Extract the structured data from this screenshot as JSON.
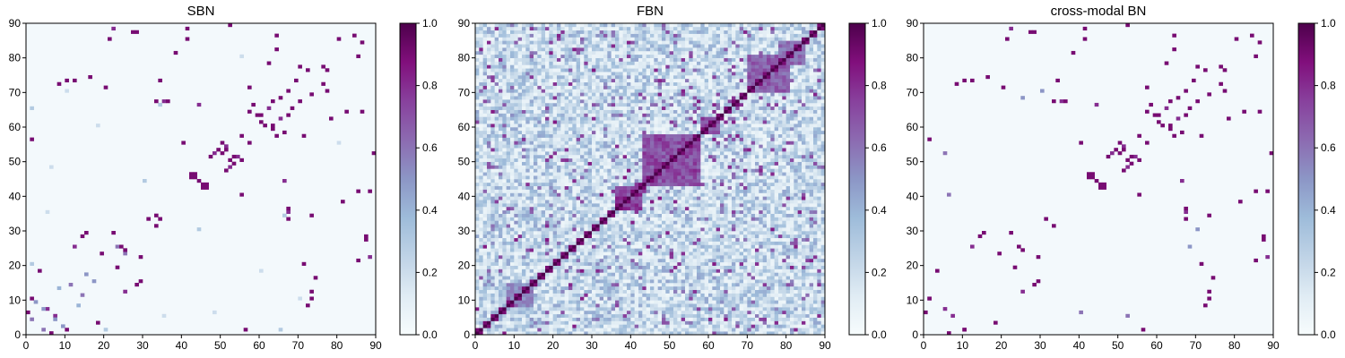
{
  "figure": {
    "colormap": "BuPu",
    "colormap_stops": [
      "#f7fcfd",
      "#e0ecf4",
      "#bfd3e6",
      "#9ebcda",
      "#8c96c6",
      "#8c6bb1",
      "#88419d",
      "#810f7c",
      "#4d004b"
    ]
  },
  "chart_data": [
    {
      "type": "heatmap",
      "title": "SBN",
      "xlim": [
        0,
        90
      ],
      "ylim": [
        0,
        90
      ],
      "xticks": [
        0,
        10,
        20,
        30,
        40,
        50,
        60,
        70,
        80,
        90
      ],
      "yticks": [
        0,
        10,
        20,
        30,
        40,
        50,
        60,
        70,
        80,
        90
      ],
      "grid_size": 90,
      "colorbar": {
        "range": [
          0,
          1
        ],
        "ticks": [
          0.0,
          0.2,
          0.4,
          0.6,
          0.8,
          1.0
        ],
        "tick_labels": [
          "0.0",
          "0.2",
          "0.4",
          "0.6",
          "0.8",
          "1.0"
        ]
      },
      "matrix_description": "Sparse structural brain network: mostly near-zero background with scattered high-weight symmetric cells, densest around nodes 40-55 and 60-75",
      "symmetric": true,
      "cells": [
        [
          0,
          6,
          0.9
        ],
        [
          1,
          20,
          0.3
        ],
        [
          3,
          18,
          0.9
        ],
        [
          4,
          1,
          0.6
        ],
        [
          5,
          7,
          0.8
        ],
        [
          7,
          4,
          0.5
        ],
        [
          8,
          13,
          0.4
        ],
        [
          9,
          2,
          0.5
        ],
        [
          10,
          1,
          0.9
        ],
        [
          11,
          14,
          0.6
        ],
        [
          12,
          25,
          0.8
        ],
        [
          14,
          28,
          0.9
        ],
        [
          15,
          29,
          0.9
        ],
        [
          17,
          15,
          0.5
        ],
        [
          19,
          23,
          0.9
        ],
        [
          21,
          85,
          0.9
        ],
        [
          22,
          88,
          0.8
        ],
        [
          23,
          25,
          0.6
        ],
        [
          25,
          24,
          0.9
        ],
        [
          27,
          87,
          0.9
        ],
        [
          29,
          22,
          0.9
        ],
        [
          31,
          33,
          0.9
        ],
        [
          33,
          34,
          0.9
        ],
        [
          35,
          67,
          0.8
        ],
        [
          36,
          67,
          0.9
        ],
        [
          38,
          81,
          0.9
        ],
        [
          40,
          55,
          0.9
        ],
        [
          42,
          45,
          0.9
        ],
        [
          43,
          46,
          0.9
        ],
        [
          44,
          44,
          0.9
        ],
        [
          45,
          43,
          0.9
        ],
        [
          46,
          42,
          0.9
        ],
        [
          47,
          51,
          0.9
        ],
        [
          48,
          52,
          0.8
        ],
        [
          49,
          53,
          0.9
        ],
        [
          50,
          55,
          0.9
        ],
        [
          51,
          54,
          0.8
        ],
        [
          52,
          50,
          0.9
        ],
        [
          53,
          51,
          0.9
        ],
        [
          55,
          57,
          0.9
        ],
        [
          56,
          1,
          0.9
        ],
        [
          57,
          64,
          0.9
        ],
        [
          58,
          66,
          0.9
        ],
        [
          59,
          63,
          0.9
        ],
        [
          60,
          61,
          0.9
        ],
        [
          62,
          65,
          0.8
        ],
        [
          63,
          67,
          0.9
        ],
        [
          65,
          68,
          0.9
        ],
        [
          67,
          70,
          0.9
        ],
        [
          69,
          73,
          0.9
        ],
        [
          71,
          57,
          0.9
        ],
        [
          72,
          76,
          0.9
        ],
        [
          73,
          34,
          0.9
        ],
        [
          74,
          16,
          0.9
        ],
        [
          76,
          77,
          0.9
        ],
        [
          78,
          62,
          0.9
        ],
        [
          80,
          85,
          0.9
        ],
        [
          82,
          64,
          0.9
        ],
        [
          84,
          86,
          0.9
        ],
        [
          86,
          64,
          0.9
        ],
        [
          87,
          28,
          0.9
        ],
        [
          88,
          41,
          0.9
        ],
        [
          89,
          52,
          0.9
        ],
        [
          5,
          35,
          0.2
        ],
        [
          18,
          60,
          0.2
        ],
        [
          30,
          44,
          0.3
        ],
        [
          48,
          6,
          0.2
        ],
        [
          55,
          80,
          0.2
        ],
        [
          66,
          34,
          0.3
        ],
        [
          70,
          10,
          0.2
        ],
        [
          10,
          73,
          0.9
        ],
        [
          12,
          73,
          0.9
        ],
        [
          20,
          71,
          0.9
        ],
        [
          8,
          72,
          0.9
        ],
        [
          33,
          67,
          0.9
        ],
        [
          44,
          66,
          0.8
        ],
        [
          63,
          60,
          0.9
        ],
        [
          70,
          77,
          0.9
        ],
        [
          85,
          41,
          0.9
        ],
        [
          1,
          65,
          0.3
        ]
      ]
    },
    {
      "type": "heatmap",
      "title": "FBN",
      "xlim": [
        0,
        90
      ],
      "ylim": [
        0,
        90
      ],
      "xticks": [
        0,
        10,
        20,
        30,
        40,
        50,
        60,
        70,
        80,
        90
      ],
      "yticks": [
        0,
        10,
        20,
        30,
        40,
        50,
        60,
        70,
        80,
        90
      ],
      "grid_size": 90,
      "colorbar": {
        "range": [
          0,
          1
        ],
        "ticks": [
          0.0,
          0.2,
          0.4,
          0.6,
          0.8,
          1.0
        ],
        "tick_labels": [
          "0.0",
          "0.2",
          "0.4",
          "0.6",
          "0.8",
          "1.0"
        ]
      },
      "matrix_description": "Dense functional brain network: moderate background weights (about 0.1-0.4), diagonal of value 1, strong blocks around nodes 36-42, 43-57, 58-62 and 70-80",
      "symmetric": true,
      "diagonal_value": 1.0,
      "background_range": [
        0.05,
        0.45
      ],
      "blocks": [
        {
          "from": 36,
          "to": 42,
          "value": 0.85
        },
        {
          "from": 43,
          "to": 57,
          "value": 0.8
        },
        {
          "from": 58,
          "to": 62,
          "value": 0.8
        },
        {
          "from": 70,
          "to": 80,
          "value": 0.75
        },
        {
          "from": 8,
          "to": 14,
          "value": 0.6
        },
        {
          "from": 78,
          "to": 84,
          "value": 0.7
        }
      ]
    },
    {
      "type": "heatmap",
      "title": "cross-modal BN",
      "xlim": [
        0,
        90
      ],
      "ylim": [
        0,
        90
      ],
      "xticks": [
        0,
        10,
        20,
        30,
        40,
        50,
        60,
        70,
        80,
        90
      ],
      "yticks": [
        0,
        10,
        20,
        30,
        40,
        50,
        60,
        70,
        80,
        90
      ],
      "grid_size": 90,
      "colorbar": {
        "range": [
          0,
          1
        ],
        "ticks": [
          0.0,
          0.2,
          0.4,
          0.6,
          0.8,
          1.0
        ],
        "tick_labels": [
          "0.0",
          "0.2",
          "0.4",
          "0.6",
          "0.8",
          "1.0"
        ]
      },
      "matrix_description": "Sparse cross-modal network: near-zero background with scattered binary-like strong cells resembling the SBN pattern",
      "symmetric": true,
      "cells": [
        [
          0,
          6,
          0.9
        ],
        [
          1,
          10,
          0.9
        ],
        [
          3,
          18,
          0.9
        ],
        [
          5,
          7,
          0.8
        ],
        [
          10,
          1,
          0.9
        ],
        [
          12,
          25,
          0.8
        ],
        [
          14,
          28,
          0.9
        ],
        [
          15,
          29,
          0.9
        ],
        [
          19,
          23,
          0.9
        ],
        [
          21,
          85,
          0.9
        ],
        [
          22,
          88,
          0.8
        ],
        [
          25,
          24,
          0.9
        ],
        [
          27,
          87,
          0.9
        ],
        [
          29,
          22,
          0.9
        ],
        [
          31,
          33,
          0.9
        ],
        [
          35,
          67,
          0.8
        ],
        [
          36,
          67,
          0.9
        ],
        [
          38,
          81,
          0.9
        ],
        [
          40,
          55,
          0.9
        ],
        [
          42,
          45,
          0.9
        ],
        [
          43,
          46,
          0.9
        ],
        [
          44,
          44,
          0.9
        ],
        [
          45,
          43,
          0.9
        ],
        [
          46,
          42,
          0.9
        ],
        [
          47,
          51,
          0.9
        ],
        [
          48,
          52,
          0.8
        ],
        [
          49,
          53,
          0.9
        ],
        [
          50,
          55,
          0.9
        ],
        [
          51,
          54,
          0.8
        ],
        [
          52,
          50,
          0.9
        ],
        [
          53,
          51,
          0.9
        ],
        [
          55,
          57,
          0.9
        ],
        [
          56,
          1,
          0.9
        ],
        [
          57,
          64,
          0.9
        ],
        [
          58,
          66,
          0.9
        ],
        [
          59,
          63,
          0.9
        ],
        [
          60,
          61,
          0.9
        ],
        [
          62,
          65,
          0.8
        ],
        [
          63,
          67,
          0.9
        ],
        [
          65,
          68,
          0.9
        ],
        [
          67,
          70,
          0.9
        ],
        [
          69,
          73,
          0.9
        ],
        [
          71,
          57,
          0.9
        ],
        [
          72,
          76,
          0.9
        ],
        [
          73,
          34,
          0.9
        ],
        [
          74,
          16,
          0.9
        ],
        [
          76,
          77,
          0.9
        ],
        [
          78,
          62,
          0.9
        ],
        [
          80,
          85,
          0.9
        ],
        [
          82,
          64,
          0.9
        ],
        [
          84,
          86,
          0.9
        ],
        [
          86,
          64,
          0.9
        ],
        [
          87,
          28,
          0.9
        ],
        [
          88,
          41,
          0.9
        ],
        [
          89,
          52,
          0.9
        ],
        [
          10,
          73,
          0.9
        ],
        [
          12,
          73,
          0.9
        ],
        [
          20,
          71,
          0.9
        ],
        [
          8,
          72,
          0.9
        ],
        [
          33,
          67,
          0.9
        ],
        [
          44,
          66,
          0.8
        ],
        [
          63,
          60,
          0.9
        ],
        [
          70,
          77,
          0.9
        ],
        [
          85,
          41,
          0.9
        ],
        [
          6,
          40,
          0.6
        ],
        [
          30,
          70,
          0.5
        ],
        [
          52,
          5,
          0.6
        ],
        [
          68,
          25,
          0.5
        ]
      ]
    }
  ]
}
